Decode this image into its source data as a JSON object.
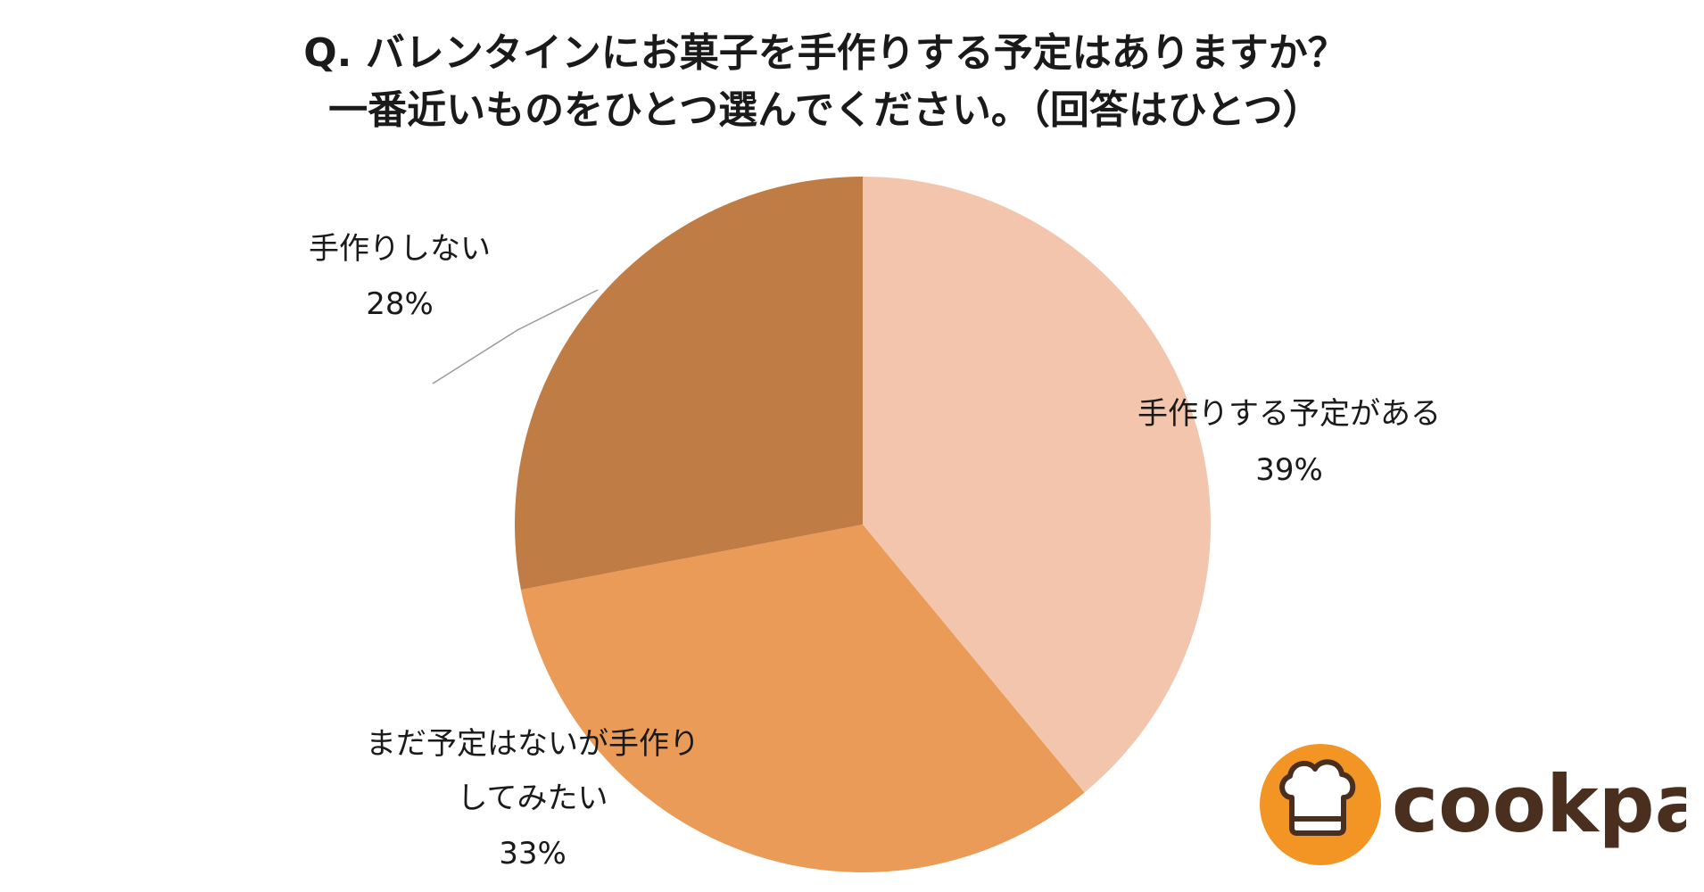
{
  "title": {
    "line1": "Q. バレンタインにお菓子を手作りする予定はありますか？",
    "line2": "一番近いものをひとつ選んでください。（回答はひとつ）"
  },
  "chart_data": {
    "type": "pie",
    "title": "Q. バレンタインにお菓子を手作りする予定はありますか？ 一番近いものをひとつ選んでください。（回答はひとつ）",
    "slices": [
      {
        "label": "手作りする予定がある",
        "value": 39,
        "display": "39%",
        "color": "#F2C5AC"
      },
      {
        "label_lines": [
          "まだ予定はないが手作り",
          "してみたい"
        ],
        "value": 33,
        "display": "33%",
        "color": "#EA9B57"
      },
      {
        "label": "手作りしない",
        "value": 28,
        "display": "28%",
        "color": "#BF7D45"
      }
    ],
    "legend": "none"
  },
  "logo": {
    "text": "cookpad",
    "icon": "chef-hat-icon",
    "circle_color": "#F29524",
    "text_color": "#4A2E1E"
  }
}
